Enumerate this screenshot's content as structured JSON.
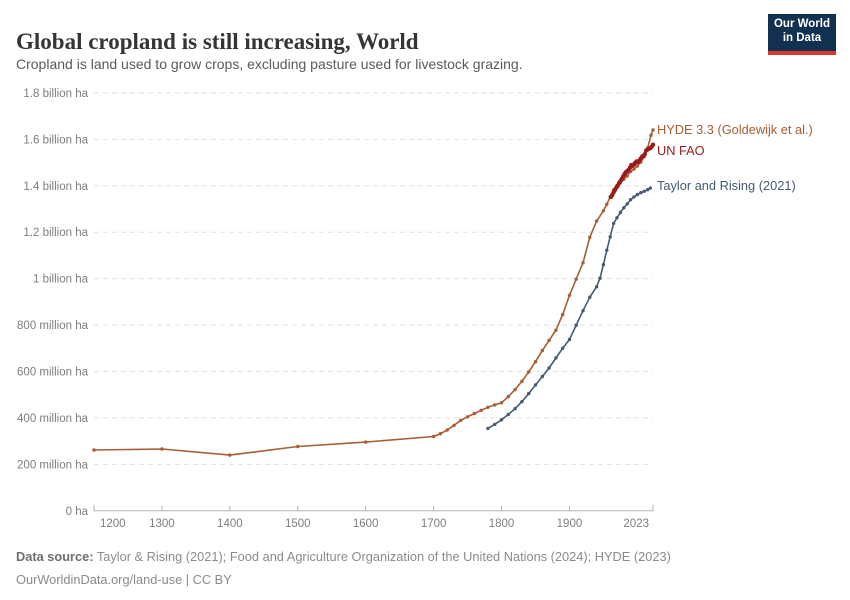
{
  "header": {
    "title": "Global cropland is still increasing, World",
    "subtitle": "Cropland is land used to grow crops, excluding pasture used for livestock grazing.",
    "logo": {
      "line1": "Our World",
      "line2": "in Data",
      "bg_color": "#12304F",
      "accent_color": "#D7382D"
    }
  },
  "footer": {
    "source_label": "Data source:",
    "source_text": " Taylor & Rising (2021); Food and Agriculture Organization of the United Nations (2024); HYDE (2023)",
    "license_text": "OurWorldinData.org/land-use | CC BY"
  },
  "chart_data": {
    "type": "line",
    "title": "Global cropland is still increasing, World",
    "unit": "million hectares",
    "grid": "horizontal dashed",
    "legend_position": "end-of-line labels",
    "x_axis": {
      "min": 1200,
      "max": 2023,
      "ticks": [
        {
          "value": 1200,
          "label": "1200"
        },
        {
          "value": 1300,
          "label": "1300"
        },
        {
          "value": 1400,
          "label": "1400"
        },
        {
          "value": 1500,
          "label": "1500"
        },
        {
          "value": 1600,
          "label": "1600"
        },
        {
          "value": 1700,
          "label": "1700"
        },
        {
          "value": 1800,
          "label": "1800"
        },
        {
          "value": 1900,
          "label": "1900"
        },
        {
          "value": 2023,
          "label": "2023"
        }
      ]
    },
    "y_axis": {
      "min": 0,
      "max": 1800,
      "unit": "million ha",
      "ticks": [
        {
          "value": 0,
          "label": "0 ha"
        },
        {
          "value": 200,
          "label": "200 million ha"
        },
        {
          "value": 400,
          "label": "400 million ha"
        },
        {
          "value": 600,
          "label": "600 million ha"
        },
        {
          "value": 800,
          "label": "800 million ha"
        },
        {
          "value": 1000,
          "label": "1 billion ha"
        },
        {
          "value": 1200,
          "label": "1.2 billion ha"
        },
        {
          "value": 1400,
          "label": "1.4 billion ha"
        },
        {
          "value": 1600,
          "label": "1.6 billion ha"
        },
        {
          "value": 1800,
          "label": "1.8 billion ha"
        }
      ]
    },
    "series": [
      {
        "name": "HYDE 3.3 (Goldewijk et al.)",
        "color": "#A85D33",
        "line_width": 1.6,
        "marker_radius": 1.7,
        "label_dy": 0,
        "z": 1,
        "points": [
          [
            1200,
            262
          ],
          [
            1300,
            266
          ],
          [
            1400,
            240
          ],
          [
            1500,
            277
          ],
          [
            1600,
            296
          ],
          [
            1700,
            320
          ],
          [
            1710,
            332
          ],
          [
            1720,
            348
          ],
          [
            1730,
            368
          ],
          [
            1740,
            390
          ],
          [
            1750,
            405
          ],
          [
            1760,
            419
          ],
          [
            1770,
            433
          ],
          [
            1780,
            446
          ],
          [
            1790,
            456
          ],
          [
            1800,
            465
          ],
          [
            1810,
            492
          ],
          [
            1820,
            522
          ],
          [
            1830,
            558
          ],
          [
            1840,
            598
          ],
          [
            1850,
            642
          ],
          [
            1860,
            690
          ],
          [
            1870,
            734
          ],
          [
            1880,
            778
          ],
          [
            1890,
            845
          ],
          [
            1900,
            928
          ],
          [
            1910,
            998
          ],
          [
            1920,
            1068
          ],
          [
            1930,
            1178
          ],
          [
            1940,
            1248
          ],
          [
            1950,
            1292
          ],
          [
            1955,
            1320
          ],
          [
            1960,
            1352
          ],
          [
            1965,
            1382
          ],
          [
            1970,
            1402
          ],
          [
            1975,
            1412
          ],
          [
            1980,
            1428
          ],
          [
            1985,
            1442
          ],
          [
            1990,
            1462
          ],
          [
            1995,
            1472
          ],
          [
            2000,
            1485
          ],
          [
            2005,
            1502
          ],
          [
            2010,
            1525
          ],
          [
            2015,
            1562
          ],
          [
            2020,
            1618
          ],
          [
            2023,
            1640
          ]
        ]
      },
      {
        "name": "UN FAO",
        "color": "#9A1B1C",
        "line_width": 2.6,
        "marker_radius": 2.2,
        "label_dy": 6,
        "z": 3,
        "points": [
          [
            1961,
            1352
          ],
          [
            1963,
            1360
          ],
          [
            1965,
            1372
          ],
          [
            1967,
            1382
          ],
          [
            1969,
            1392
          ],
          [
            1971,
            1400
          ],
          [
            1973,
            1412
          ],
          [
            1975,
            1420
          ],
          [
            1977,
            1430
          ],
          [
            1979,
            1440
          ],
          [
            1981,
            1450
          ],
          [
            1983,
            1458
          ],
          [
            1985,
            1463
          ],
          [
            1987,
            1468
          ],
          [
            1989,
            1478
          ],
          [
            1991,
            1489
          ],
          [
            1993,
            1486
          ],
          [
            1995,
            1492
          ],
          [
            1997,
            1500
          ],
          [
            1999,
            1505
          ],
          [
            2001,
            1503
          ],
          [
            2003,
            1509
          ],
          [
            2005,
            1518
          ],
          [
            2007,
            1526
          ],
          [
            2009,
            1529
          ],
          [
            2011,
            1536
          ],
          [
            2013,
            1552
          ],
          [
            2015,
            1556
          ],
          [
            2017,
            1560
          ],
          [
            2019,
            1562
          ],
          [
            2021,
            1568
          ],
          [
            2023,
            1577
          ]
        ]
      },
      {
        "name": "Taylor and Rising (2021)",
        "color": "#475A70",
        "line_width": 1.6,
        "marker_radius": 1.7,
        "label_dy": -2,
        "z": 2,
        "points": [
          [
            1780,
            355
          ],
          [
            1790,
            372
          ],
          [
            1800,
            392
          ],
          [
            1810,
            415
          ],
          [
            1820,
            440
          ],
          [
            1830,
            470
          ],
          [
            1840,
            505
          ],
          [
            1850,
            542
          ],
          [
            1860,
            578
          ],
          [
            1870,
            615
          ],
          [
            1880,
            658
          ],
          [
            1890,
            700
          ],
          [
            1900,
            738
          ],
          [
            1910,
            800
          ],
          [
            1920,
            862
          ],
          [
            1930,
            920
          ],
          [
            1940,
            965
          ],
          [
            1945,
            1002
          ],
          [
            1950,
            1060
          ],
          [
            1955,
            1122
          ],
          [
            1960,
            1180
          ],
          [
            1965,
            1238
          ],
          [
            1970,
            1262
          ],
          [
            1975,
            1285
          ],
          [
            1980,
            1305
          ],
          [
            1985,
            1322
          ],
          [
            1990,
            1340
          ],
          [
            1995,
            1352
          ],
          [
            2000,
            1362
          ],
          [
            2005,
            1370
          ],
          [
            2010,
            1376
          ],
          [
            2015,
            1383
          ],
          [
            2019,
            1390
          ]
        ]
      }
    ]
  }
}
